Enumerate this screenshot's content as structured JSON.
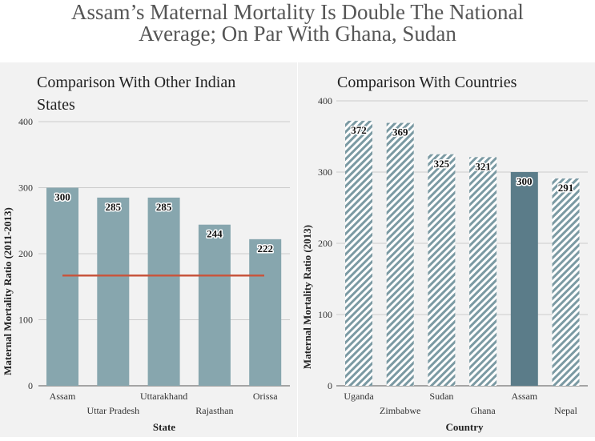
{
  "page_title_line1": "Assam’s Maternal Mortality Is Double The National",
  "page_title_line2": "Average; On Par With Ghana, Sudan",
  "chart_data": [
    {
      "type": "bar",
      "title_line1": "Comparison With Other Indian",
      "title_line2": "States",
      "categories": [
        "Assam",
        "Uttar Pradesh",
        "Uttarakhand",
        "Rajasthan",
        "Orissa"
      ],
      "values": [
        300,
        285,
        285,
        244,
        222
      ],
      "data_labels": [
        "300",
        "285",
        "285",
        "244",
        "222"
      ],
      "xlabel": "State",
      "ylabel": "Maternal Mortality Ratio (2011-2013)",
      "ylim": [
        0,
        400
      ],
      "yticks": [
        "0",
        "100",
        "200",
        "300",
        "400"
      ],
      "yticks_values": [
        0,
        100,
        200,
        300,
        400
      ],
      "reference_line": 167,
      "grid": true,
      "colors": {
        "bar": "#87a6ae",
        "reference": "#c8553d"
      }
    },
    {
      "type": "bar",
      "title": "Comparison With Countries",
      "categories": [
        "Uganda",
        "Zimbabwe",
        "Sudan",
        "Ghana",
        "Assam",
        "Nepal"
      ],
      "values": [
        372,
        369,
        325,
        321,
        300,
        291
      ],
      "data_labels": [
        "372",
        "369",
        "325",
        "321",
        "300",
        "291"
      ],
      "highlight": "Assam",
      "xlabel": "Country",
      "ylabel": "Maternal Mortality Ratio (2013)",
      "ylim": [
        0,
        400
      ],
      "yticks": [
        "0",
        "100",
        "200",
        "300",
        "400"
      ],
      "yticks_values": [
        0,
        100,
        200,
        300,
        400
      ],
      "grid": true,
      "colors": {
        "hatch_fg": "#7b9aa3",
        "hatch_bg": "#ffffff",
        "highlight": "#5b7c89"
      }
    }
  ]
}
